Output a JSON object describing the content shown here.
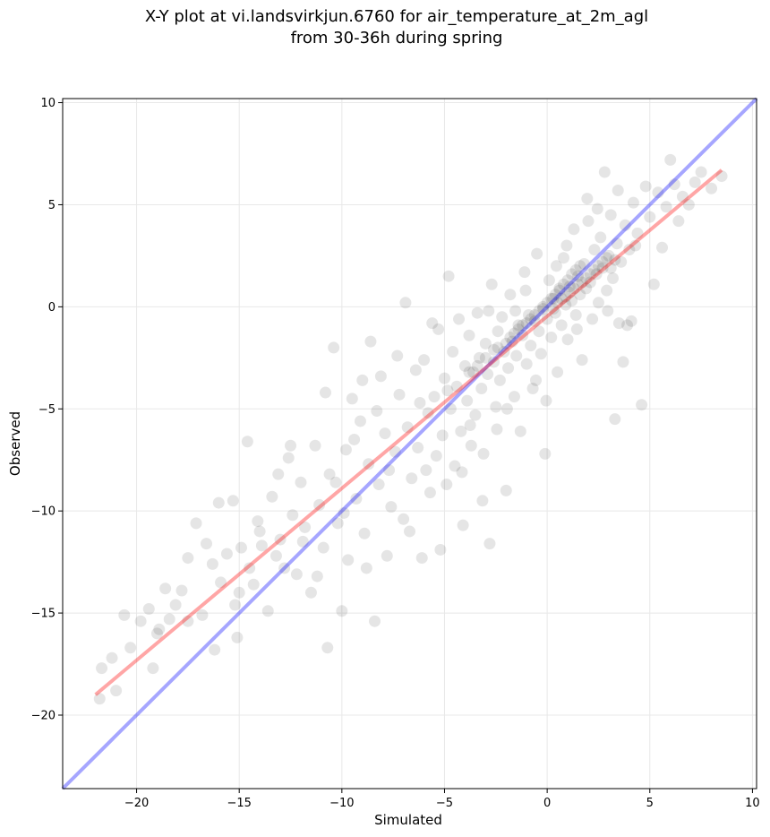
{
  "chart_data": {
    "type": "scatter",
    "title_lines": [
      "X-Y plot at vi.landsvirkjun.6760 for air_temperature_at_2m_agl",
      "from 30-36h during spring"
    ],
    "xlabel": "Simulated",
    "ylabel": "Observed",
    "xlim": [
      -23.6,
      10.2
    ],
    "ylim": [
      -23.6,
      10.2
    ],
    "xticks": [
      -20,
      -15,
      -10,
      -5,
      0,
      5,
      10
    ],
    "yticks": [
      -20,
      -15,
      -10,
      -5,
      0,
      5,
      10
    ],
    "grid": true,
    "colors": {
      "points": "#000000",
      "identity_line": "#0000ff",
      "fit_line": "#ff0000",
      "grid": "#e8e8e8"
    },
    "identity_line": {
      "x": [
        -23.6,
        10.2
      ],
      "y": [
        -23.6,
        10.2
      ]
    },
    "fit_line": {
      "x": [
        -22.0,
        8.5
      ],
      "y": [
        -19.0,
        6.7
      ]
    },
    "points": [
      [
        -21.8,
        -19.2
      ],
      [
        -21.7,
        -17.7
      ],
      [
        -21.2,
        -17.2
      ],
      [
        -20.6,
        -15.1
      ],
      [
        -20.3,
        -16.7
      ],
      [
        -19.8,
        -15.4
      ],
      [
        -19.4,
        -14.8
      ],
      [
        -19.2,
        -17.7
      ],
      [
        -18.9,
        -15.8
      ],
      [
        -18.6,
        -13.8
      ],
      [
        -18.4,
        -15.3
      ],
      [
        -18.1,
        -14.6
      ],
      [
        -17.8,
        -13.9
      ],
      [
        -17.5,
        -15.4
      ],
      [
        -17.1,
        -10.6
      ],
      [
        -16.8,
        -15.1
      ],
      [
        -16.6,
        -11.6
      ],
      [
        -16.3,
        -12.6
      ],
      [
        -16.0,
        -9.6
      ],
      [
        -15.9,
        -13.5
      ],
      [
        -15.6,
        -12.1
      ],
      [
        -15.3,
        -9.5
      ],
      [
        -15.2,
        -14.6
      ],
      [
        -15.1,
        -16.2
      ],
      [
        -14.9,
        -11.8
      ],
      [
        -14.6,
        -6.6
      ],
      [
        -14.5,
        -12.8
      ],
      [
        -14.3,
        -13.6
      ],
      [
        -14.1,
        -10.5
      ],
      [
        -13.9,
        -11.7
      ],
      [
        -13.6,
        -14.9
      ],
      [
        -13.4,
        -9.3
      ],
      [
        -13.1,
        -8.2
      ],
      [
        -13.0,
        -11.4
      ],
      [
        -12.8,
        -12.8
      ],
      [
        -12.6,
        -7.4
      ],
      [
        -12.4,
        -10.2
      ],
      [
        -12.2,
        -13.1
      ],
      [
        -12.0,
        -8.6
      ],
      [
        -11.8,
        -10.8
      ],
      [
        -11.5,
        -14.0
      ],
      [
        -11.3,
        -6.8
      ],
      [
        -11.1,
        -9.7
      ],
      [
        -10.9,
        -11.8
      ],
      [
        -10.7,
        -16.7
      ],
      [
        -10.6,
        -8.2
      ],
      [
        -10.4,
        -2.0
      ],
      [
        -10.2,
        -10.6
      ],
      [
        -10.0,
        -14.9
      ],
      [
        -9.8,
        -7.0
      ],
      [
        -9.7,
        -12.4
      ],
      [
        -9.5,
        -4.5
      ],
      [
        -9.3,
        -9.4
      ],
      [
        -9.1,
        -5.6
      ],
      [
        -8.9,
        -11.1
      ],
      [
        -8.7,
        -7.7
      ],
      [
        -8.6,
        -1.7
      ],
      [
        -8.4,
        -15.4
      ],
      [
        -8.2,
        -8.7
      ],
      [
        -8.1,
        -3.4
      ],
      [
        -7.9,
        -6.2
      ],
      [
        -7.8,
        -12.2
      ],
      [
        -7.6,
        -9.8
      ],
      [
        -7.4,
        -7.1
      ],
      [
        -7.2,
        -4.3
      ],
      [
        -7.0,
        -10.4
      ],
      [
        -6.9,
        0.2
      ],
      [
        -6.8,
        -5.9
      ],
      [
        -6.6,
        -8.4
      ],
      [
        -6.4,
        -3.1
      ],
      [
        -6.3,
        -6.9
      ],
      [
        -6.1,
        -12.3
      ],
      [
        -6.0,
        -2.6
      ],
      [
        -5.8,
        -5.2
      ],
      [
        -5.7,
        -9.1
      ],
      [
        -5.5,
        -4.4
      ],
      [
        -5.4,
        -7.3
      ],
      [
        -5.3,
        -1.1
      ],
      [
        -5.1,
        -6.3
      ],
      [
        -5.0,
        -3.5
      ],
      [
        -4.9,
        -8.7
      ],
      [
        -4.8,
        1.5
      ],
      [
        -4.7,
        -5.0
      ],
      [
        -4.6,
        -2.2
      ],
      [
        -4.5,
        -7.8
      ],
      [
        -4.4,
        -3.9
      ],
      [
        -4.3,
        -0.6
      ],
      [
        -4.2,
        -6.1
      ],
      [
        -4.1,
        -10.7
      ],
      [
        -4.0,
        -2.9
      ],
      [
        -3.9,
        -4.6
      ],
      [
        -3.8,
        -1.4
      ],
      [
        -3.7,
        -6.8
      ],
      [
        -3.6,
        -3.2
      ],
      [
        -3.5,
        -5.3
      ],
      [
        -3.4,
        -0.3
      ],
      [
        -3.3,
        -2.5
      ],
      [
        -3.2,
        -4.0
      ],
      [
        -3.1,
        -7.2
      ],
      [
        -3.0,
        -1.8
      ],
      [
        -2.9,
        -3.3
      ],
      [
        -2.8,
        -11.6
      ],
      [
        -2.7,
        1.1
      ],
      [
        -2.6,
        -2.7
      ],
      [
        -2.5,
        -4.9
      ],
      [
        -2.4,
        -1.2
      ],
      [
        -2.3,
        -3.6
      ],
      [
        -2.2,
        -0.5
      ],
      [
        -2.1,
        -2.2
      ],
      [
        -2.0,
        -9.0
      ],
      [
        -1.9,
        -3.0
      ],
      [
        -1.8,
        0.6
      ],
      [
        -1.7,
        -1.7
      ],
      [
        -1.6,
        -4.4
      ],
      [
        -1.5,
        -2.4
      ],
      [
        -1.4,
        -0.9
      ],
      [
        -1.3,
        -6.1
      ],
      [
        -1.2,
        -1.4
      ],
      [
        -1.1,
        1.7
      ],
      [
        -1.0,
        -2.8
      ],
      [
        -0.9,
        -0.4
      ],
      [
        -0.8,
        -1.9
      ],
      [
        -0.7,
        -4.0
      ],
      [
        -0.6,
        -0.7
      ],
      [
        -0.5,
        2.6
      ],
      [
        -0.4,
        -1.2
      ],
      [
        -0.3,
        -2.3
      ],
      [
        -0.2,
        -0.1
      ],
      [
        -0.1,
        -7.2
      ],
      [
        0.0,
        -0.6
      ],
      [
        0.1,
        1.3
      ],
      [
        0.2,
        -1.5
      ],
      [
        0.3,
        0.4
      ],
      [
        0.4,
        -0.3
      ],
      [
        0.5,
        -3.2
      ],
      [
        0.6,
        0.8
      ],
      [
        0.7,
        -0.9
      ],
      [
        0.8,
        2.4
      ],
      [
        0.9,
        0.1
      ],
      [
        1.0,
        -1.6
      ],
      [
        1.1,
        1.0
      ],
      [
        1.2,
        0.3
      ],
      [
        1.3,
        3.8
      ],
      [
        1.4,
        -0.4
      ],
      [
        1.5,
        1.5
      ],
      [
        1.6,
        0.6
      ],
      [
        1.7,
        -2.6
      ],
      [
        1.8,
        2.1
      ],
      [
        1.9,
        0.9
      ],
      [
        2.0,
        4.2
      ],
      [
        2.1,
        1.2
      ],
      [
        2.2,
        -0.6
      ],
      [
        2.3,
        2.8
      ],
      [
        2.4,
        1.6
      ],
      [
        2.5,
        0.2
      ],
      [
        2.6,
        3.4
      ],
      [
        2.7,
        1.9
      ],
      [
        2.8,
        6.6
      ],
      [
        2.9,
        0.8
      ],
      [
        3.0,
        2.5
      ],
      [
        3.1,
        4.5
      ],
      [
        3.2,
        1.4
      ],
      [
        3.3,
        -5.5
      ],
      [
        3.4,
        3.1
      ],
      [
        3.5,
        -0.8
      ],
      [
        3.6,
        2.2
      ],
      [
        3.7,
        -2.7
      ],
      [
        3.8,
        4.0
      ],
      [
        3.9,
        -0.9
      ],
      [
        4.0,
        2.8
      ],
      [
        4.1,
        -0.7
      ],
      [
        4.2,
        5.1
      ],
      [
        4.4,
        3.6
      ],
      [
        4.6,
        -4.8
      ],
      [
        4.8,
        5.9
      ],
      [
        5.0,
        4.4
      ],
      [
        5.2,
        1.1
      ],
      [
        5.4,
        5.6
      ],
      [
        5.6,
        2.9
      ],
      [
        5.8,
        4.9
      ],
      [
        6.0,
        7.2
      ],
      [
        6.2,
        6.0
      ],
      [
        6.4,
        4.2
      ],
      [
        6.6,
        5.4
      ],
      [
        6.9,
        5.0
      ],
      [
        7.2,
        6.1
      ],
      [
        7.5,
        6.6
      ],
      [
        8.0,
        5.8
      ],
      [
        8.5,
        6.4
      ],
      [
        -21.0,
        -18.8
      ],
      [
        -19.0,
        -16.0
      ],
      [
        -17.5,
        -12.3
      ],
      [
        -16.2,
        -16.8
      ],
      [
        -15.0,
        -14.0
      ],
      [
        -14.0,
        -11.0
      ],
      [
        -13.2,
        -12.2
      ],
      [
        -12.5,
        -6.8
      ],
      [
        -11.9,
        -11.5
      ],
      [
        -11.2,
        -13.2
      ],
      [
        -10.8,
        -4.2
      ],
      [
        -10.3,
        -8.6
      ],
      [
        -9.9,
        -10.1
      ],
      [
        -9.4,
        -6.5
      ],
      [
        -9.0,
        -3.6
      ],
      [
        -8.8,
        -12.8
      ],
      [
        -8.3,
        -5.1
      ],
      [
        -7.7,
        -8.0
      ],
      [
        -7.3,
        -2.4
      ],
      [
        -6.7,
        -11.0
      ],
      [
        -6.2,
        -4.7
      ],
      [
        -5.9,
        -8.0
      ],
      [
        -5.6,
        -0.8
      ],
      [
        -5.2,
        -11.9
      ],
      [
        -4.85,
        -4.1
      ],
      [
        -4.15,
        -8.1
      ],
      [
        -3.75,
        -5.8
      ],
      [
        -3.15,
        -9.5
      ],
      [
        -2.85,
        -0.2
      ],
      [
        -2.45,
        -6.0
      ],
      [
        -1.95,
        -5.0
      ],
      [
        -1.55,
        -0.2
      ],
      [
        -1.05,
        0.8
      ],
      [
        -0.55,
        -3.6
      ],
      [
        -0.05,
        -4.6
      ],
      [
        0.45,
        2.0
      ],
      [
        0.95,
        3.0
      ],
      [
        1.45,
        -1.1
      ],
      [
        1.95,
        5.3
      ],
      [
        2.45,
        4.8
      ],
      [
        2.95,
        -0.2
      ],
      [
        3.45,
        5.7
      ],
      [
        4.3,
        3.0
      ],
      [
        -0.8,
        -0.6
      ],
      [
        -0.6,
        -0.4
      ],
      [
        -0.4,
        -0.2
      ],
      [
        -0.2,
        0.0
      ],
      [
        0.0,
        0.2
      ],
      [
        0.2,
        0.4
      ],
      [
        0.4,
        0.6
      ],
      [
        0.6,
        0.9
      ],
      [
        0.8,
        1.1
      ],
      [
        1.0,
        1.3
      ],
      [
        1.2,
        1.6
      ],
      [
        1.4,
        1.8
      ],
      [
        1.6,
        2.0
      ],
      [
        -1.6,
        -1.3
      ],
      [
        -1.4,
        -1.1
      ],
      [
        -1.2,
        -0.9
      ],
      [
        -1.0,
        -0.8
      ],
      [
        -2.0,
        -1.8
      ],
      [
        -1.8,
        -1.5
      ],
      [
        -2.6,
        -2.1
      ],
      [
        -2.4,
        -2.0
      ],
      [
        -3.0,
        -2.5
      ],
      [
        -3.4,
        -2.9
      ],
      [
        -3.8,
        -3.2
      ],
      [
        0.3,
        -0.1
      ],
      [
        0.5,
        0.2
      ],
      [
        0.7,
        0.4
      ],
      [
        0.9,
        0.5
      ],
      [
        1.1,
        0.7
      ],
      [
        1.3,
        0.9
      ],
      [
        1.5,
        1.1
      ],
      [
        1.7,
        1.2
      ],
      [
        1.9,
        1.4
      ],
      [
        2.1,
        1.6
      ],
      [
        2.3,
        1.8
      ],
      [
        2.5,
        2.0
      ],
      [
        2.7,
        2.2
      ],
      [
        2.9,
        2.4
      ],
      [
        3.1,
        1.9
      ],
      [
        3.3,
        2.3
      ]
    ]
  }
}
